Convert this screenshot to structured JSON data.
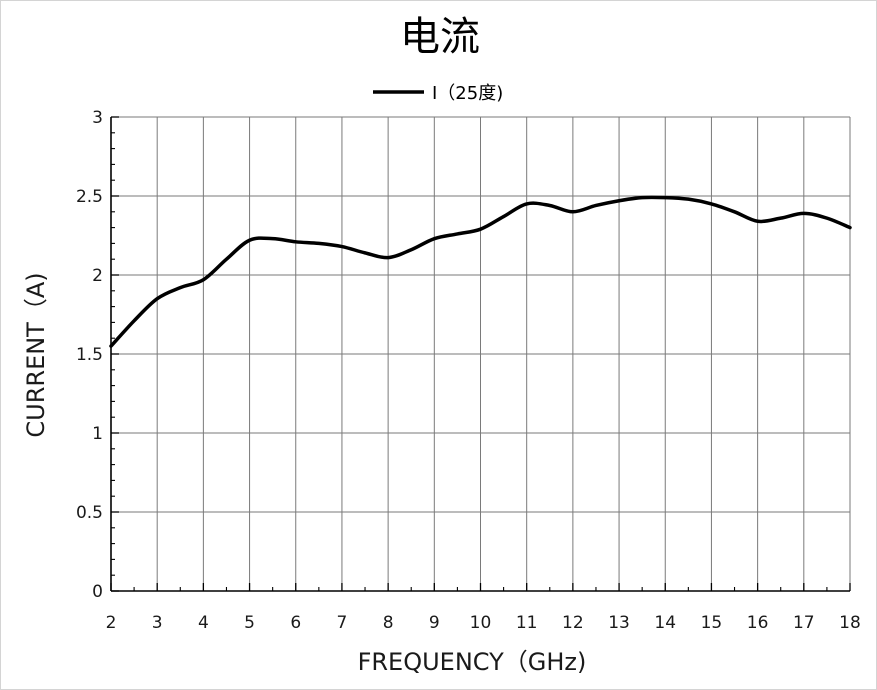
{
  "chart_data": {
    "type": "line",
    "title": "电流",
    "xlabel": "FREQUENCY（GHz)",
    "ylabel": "CURRENT（A)",
    "xlim": [
      2,
      18
    ],
    "ylim": [
      0,
      3
    ],
    "x_ticks": [
      2,
      3,
      4,
      5,
      6,
      7,
      8,
      9,
      10,
      11,
      12,
      13,
      14,
      15,
      16,
      17,
      18
    ],
    "y_ticks": [
      0,
      0.5,
      1,
      1.5,
      2,
      2.5,
      3
    ],
    "y_tick_labels": [
      "0",
      "0.5",
      "1",
      "1.5",
      "2",
      "2.5",
      "3"
    ],
    "grid": true,
    "legend_position": "top-center",
    "series": [
      {
        "name": "I（25度)",
        "color": "#000000",
        "x": [
          2,
          2.5,
          3,
          3.5,
          4,
          4.5,
          5,
          5.5,
          6,
          6.5,
          7,
          7.5,
          8,
          8.5,
          9,
          9.5,
          10,
          10.5,
          11,
          11.5,
          12,
          12.5,
          13,
          13.5,
          14,
          14.5,
          15,
          15.5,
          16,
          16.5,
          17,
          17.5,
          18
        ],
        "y": [
          1.55,
          1.71,
          1.85,
          1.92,
          1.97,
          2.1,
          2.22,
          2.23,
          2.21,
          2.2,
          2.18,
          2.14,
          2.11,
          2.16,
          2.23,
          2.26,
          2.29,
          2.37,
          2.45,
          2.44,
          2.4,
          2.44,
          2.47,
          2.49,
          2.49,
          2.48,
          2.45,
          2.4,
          2.34,
          2.36,
          2.39,
          2.36,
          2.3
        ]
      }
    ]
  }
}
